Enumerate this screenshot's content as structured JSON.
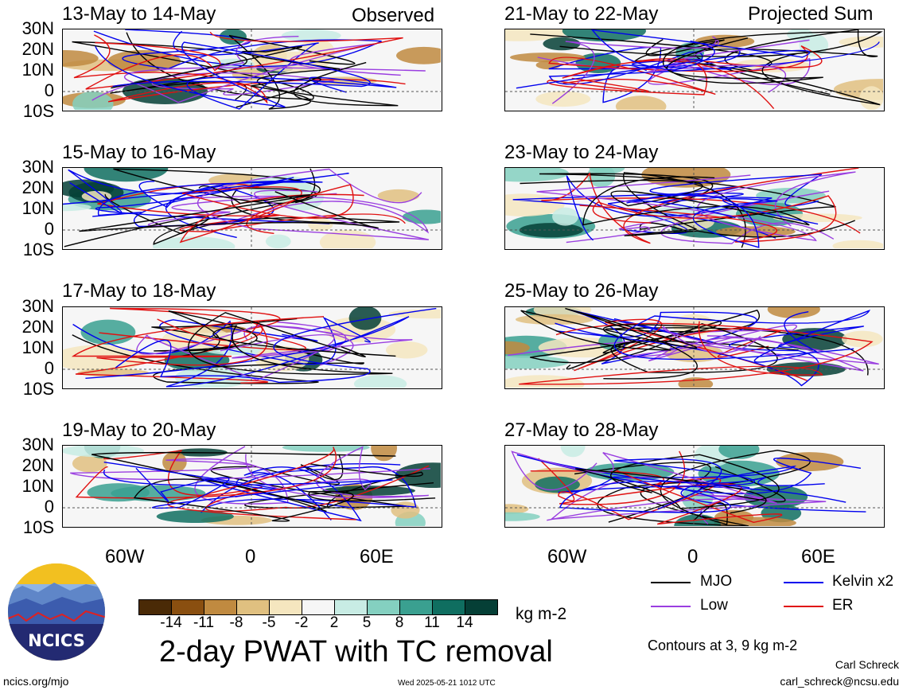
{
  "panels_left": [
    {
      "title": "13-May to 14-May",
      "tag": "Observed"
    },
    {
      "title": "15-May to 16-May",
      "tag": ""
    },
    {
      "title": "17-May to 18-May",
      "tag": ""
    },
    {
      "title": "19-May to 20-May",
      "tag": ""
    }
  ],
  "panels_right": [
    {
      "title": "21-May to 22-May",
      "tag": "Projected Sum"
    },
    {
      "title": "23-May to 24-May",
      "tag": ""
    },
    {
      "title": "25-May to 26-May",
      "tag": ""
    },
    {
      "title": "27-May to 28-May",
      "tag": ""
    }
  ],
  "lat_labels": [
    "30N",
    "20N",
    "10N",
    "0",
    "10S"
  ],
  "lon_labels": [
    "60W",
    "0",
    "60E"
  ],
  "colorbar": {
    "labels": [
      "-14",
      "-11",
      "-8",
      "-5",
      "-2",
      "2",
      "5",
      "8",
      "11",
      "14"
    ],
    "units": "kg m-2",
    "colors": [
      "#4a2a06",
      "#8a4f10",
      "#c08a40",
      "#e0c080",
      "#f5e6bf",
      "#f6f6f6",
      "#c8ece4",
      "#84d0c0",
      "#3aa090",
      "#0f6e60",
      "#053f36"
    ]
  },
  "main_title": "2-day PWAT with TC removal",
  "legend": {
    "items": [
      {
        "label": "MJO",
        "color": "#000000"
      },
      {
        "label": "Kelvin x2",
        "color": "#0000ee"
      },
      {
        "label": "Low",
        "color": "#9a3ee0"
      },
      {
        "label": "ER",
        "color": "#e01010"
      }
    ],
    "contours_note": "Contours at 3, 9 kg m-2"
  },
  "logo_text": "NCICS",
  "footer": {
    "url": "ncics.org/mjo",
    "timestamp": "Wed 2025-05-21 1012 UTC",
    "author": "Carl Schreck",
    "email": "carl_schreck@ncsu.edu"
  }
}
